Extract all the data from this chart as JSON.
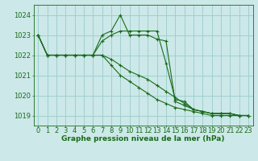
{
  "background_color": "#cce8e8",
  "line_color": "#1a6b1a",
  "grid_color": "#99cccc",
  "xlabel": "Graphe pression niveau de la mer (hPa)",
  "xlabel_fontsize": 6.5,
  "tick_fontsize": 6.0,
  "ylim": [
    1018.5,
    1024.5
  ],
  "xlim": [
    -0.5,
    23.5
  ],
  "yticks": [
    1019,
    1020,
    1021,
    1022,
    1023,
    1024
  ],
  "xticks": [
    0,
    1,
    2,
    3,
    4,
    5,
    6,
    7,
    8,
    9,
    10,
    11,
    12,
    13,
    14,
    15,
    16,
    17,
    18,
    19,
    20,
    21,
    22,
    23
  ],
  "series": [
    [
      1023.0,
      1022.0,
      1022.0,
      1022.0,
      1022.0,
      1022.0,
      1022.0,
      1022.0,
      1021.8,
      1021.5,
      1021.2,
      1021.0,
      1020.8,
      1020.5,
      1020.2,
      1019.9,
      1019.6,
      1019.3,
      1019.2,
      1019.1,
      1019.1,
      1019.1,
      1019.0,
      1019.0
    ],
    [
      1023.0,
      1022.0,
      1022.0,
      1022.0,
      1022.0,
      1022.0,
      1022.0,
      1022.0,
      1021.5,
      1021.0,
      1020.7,
      1020.4,
      1020.1,
      1019.8,
      1019.6,
      1019.4,
      1019.3,
      1019.2,
      1019.1,
      1019.0,
      1019.0,
      1019.0,
      1019.0,
      1019.0
    ],
    [
      1023.0,
      1022.0,
      1022.0,
      1022.0,
      1022.0,
      1022.0,
      1022.0,
      1023.0,
      1023.2,
      1024.0,
      1023.0,
      1023.0,
      1023.0,
      1022.8,
      1022.7,
      1019.7,
      1019.5,
      1019.3,
      1019.2,
      1019.1,
      1019.1,
      1019.1,
      1019.0,
      1019.0
    ],
    [
      1023.0,
      1022.0,
      1022.0,
      1022.0,
      1022.0,
      1022.0,
      1022.0,
      1022.7,
      1023.0,
      1023.2,
      1023.2,
      1023.2,
      1023.2,
      1023.2,
      1021.6,
      1019.8,
      1019.7,
      1019.3,
      1019.2,
      1019.1,
      1019.1,
      1019.1,
      1019.0,
      1019.0
    ]
  ]
}
